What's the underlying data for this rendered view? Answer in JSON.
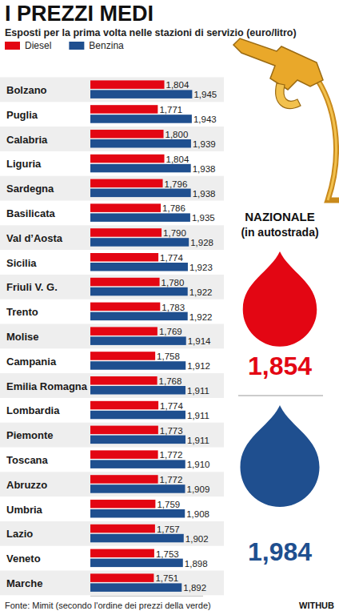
{
  "chart_data": {
    "type": "bar",
    "orientation": "horizontal",
    "title": "I PREZZI MEDI",
    "subtitle": "Esposti per la prima volta nelle stazioni di servizio (euro/litro)",
    "categories": [
      "Bolzano",
      "Puglia",
      "Calabria",
      "Liguria",
      "Sardegna",
      "Basilicata",
      "Val d’Aosta",
      "Sicilia",
      "Friuli V. G.",
      "Trento",
      "Molise",
      "Campania",
      "Emilia Romagna",
      "Lombardia",
      "Piemonte",
      "Toscana",
      "Abruzzo",
      "Umbria",
      "Lazio",
      "Veneto",
      "Marche"
    ],
    "series": [
      {
        "name": "Diesel",
        "color": "#e30613",
        "values": [
          1.804,
          1.771,
          1.8,
          1.804,
          1.796,
          1.786,
          1.79,
          1.774,
          1.78,
          1.783,
          1.769,
          1.758,
          1.768,
          1.774,
          1.773,
          1.772,
          1.772,
          1.759,
          1.757,
          1.753,
          1.751
        ],
        "value_labels": [
          "1,804",
          "1,771",
          "1,800",
          "1,804",
          "1,796",
          "1,786",
          "1,790",
          "1,774",
          "1,780",
          "1,783",
          "1,769",
          "1,758",
          "1,768",
          "1,774",
          "1,773",
          "1,772",
          "1,772",
          "1,759",
          "1,757",
          "1,753",
          "1,751"
        ]
      },
      {
        "name": "Benzina",
        "color": "#1f4f8f",
        "values": [
          1.945,
          1.943,
          1.939,
          1.938,
          1.938,
          1.935,
          1.928,
          1.923,
          1.922,
          1.922,
          1.914,
          1.912,
          1.911,
          1.911,
          1.911,
          1.91,
          1.909,
          1.908,
          1.902,
          1.898,
          1.892
        ],
        "value_labels": [
          "1,945",
          "1,943",
          "1,939",
          "1,938",
          "1,938",
          "1,935",
          "1,928",
          "1,923",
          "1,922",
          "1,922",
          "1,914",
          "1,912",
          "1,911",
          "1,911",
          "1,911",
          "1,910",
          "1,909",
          "1,908",
          "1,902",
          "1,898",
          "1,892"
        ]
      }
    ],
    "xlim": [
      1.43,
      2.0
    ],
    "tick_labels": false,
    "data_labels": true,
    "legend": "top-left",
    "source": "Fonte: Mimit (secondo l'ordine dei prezzi della verde)",
    "credit": "WITHUB",
    "national": {
      "title": "NAZIONALE",
      "subtitle": "(in autostrada)",
      "values": [
        1.854,
        1.984
      ],
      "value_labels": [
        "1,854",
        "1,984"
      ],
      "colors": [
        "#e30613",
        "#1f4f8f"
      ]
    }
  }
}
